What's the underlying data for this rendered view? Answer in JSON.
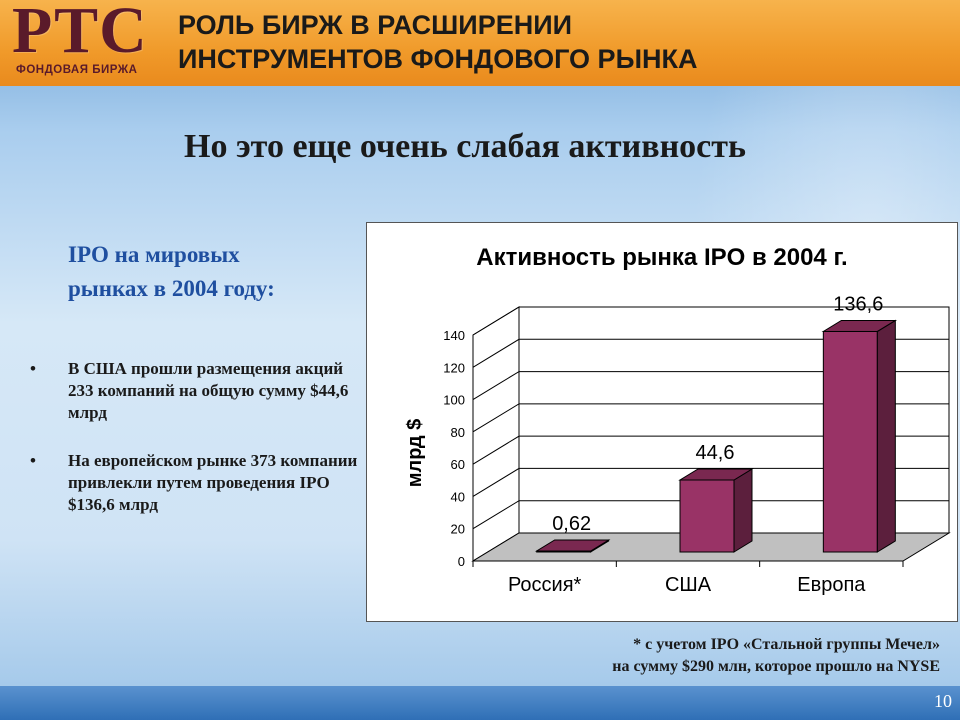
{
  "header": {
    "logo_text": "РТС",
    "logo_subtext": "ФОНДОВАЯ БИРЖА",
    "title_line1": "РОЛЬ БИРЖ В РАСШИРЕНИИ",
    "title_line2": "ИНСТРУМЕНТОВ ФОНДОВОГО РЫНКА"
  },
  "slide": {
    "title": "Но это еще очень слабая активность",
    "subtitle_line1": "IPO на мировых",
    "subtitle_line2": "рынках в 2004 году:",
    "bullets": [
      "В США прошли размещения акций 233 компаний на общую сумму $44,6 млрд",
      "На европейском рынке 373 компании привлекли путем проведения IPO $136,6 млрд"
    ],
    "bullet_symbol": "•",
    "footnote_line1": "* с учетом IPO «Стальной группы Мечел»",
    "footnote_line2": "на сумму $290 млн, которое прошло на NYSE",
    "page_number": "10"
  },
  "colors": {
    "header_orange": "#f09a2a",
    "logo_maroon": "#5a1a2a",
    "subtitle_blue": "#1f4fa0",
    "bar_front": "#993366",
    "bar_side": "#5c1f3d",
    "bar_top": "#7a2850",
    "floor": "#c0c0c0"
  },
  "chart_data": {
    "type": "bar",
    "title": "Активность рынка IPO в 2004 г.",
    "ylabel": "млрд $",
    "xlabel": "",
    "categories": [
      "Россия*",
      "США",
      "Европа"
    ],
    "values": [
      0.62,
      44.6,
      136.6
    ],
    "data_labels": [
      "0,62",
      "44,6",
      "136,6"
    ],
    "ylim": [
      0,
      140
    ],
    "yticks": [
      0,
      20,
      40,
      60,
      80,
      100,
      120,
      140
    ],
    "grid": true,
    "legend": "none",
    "style": "3d"
  }
}
